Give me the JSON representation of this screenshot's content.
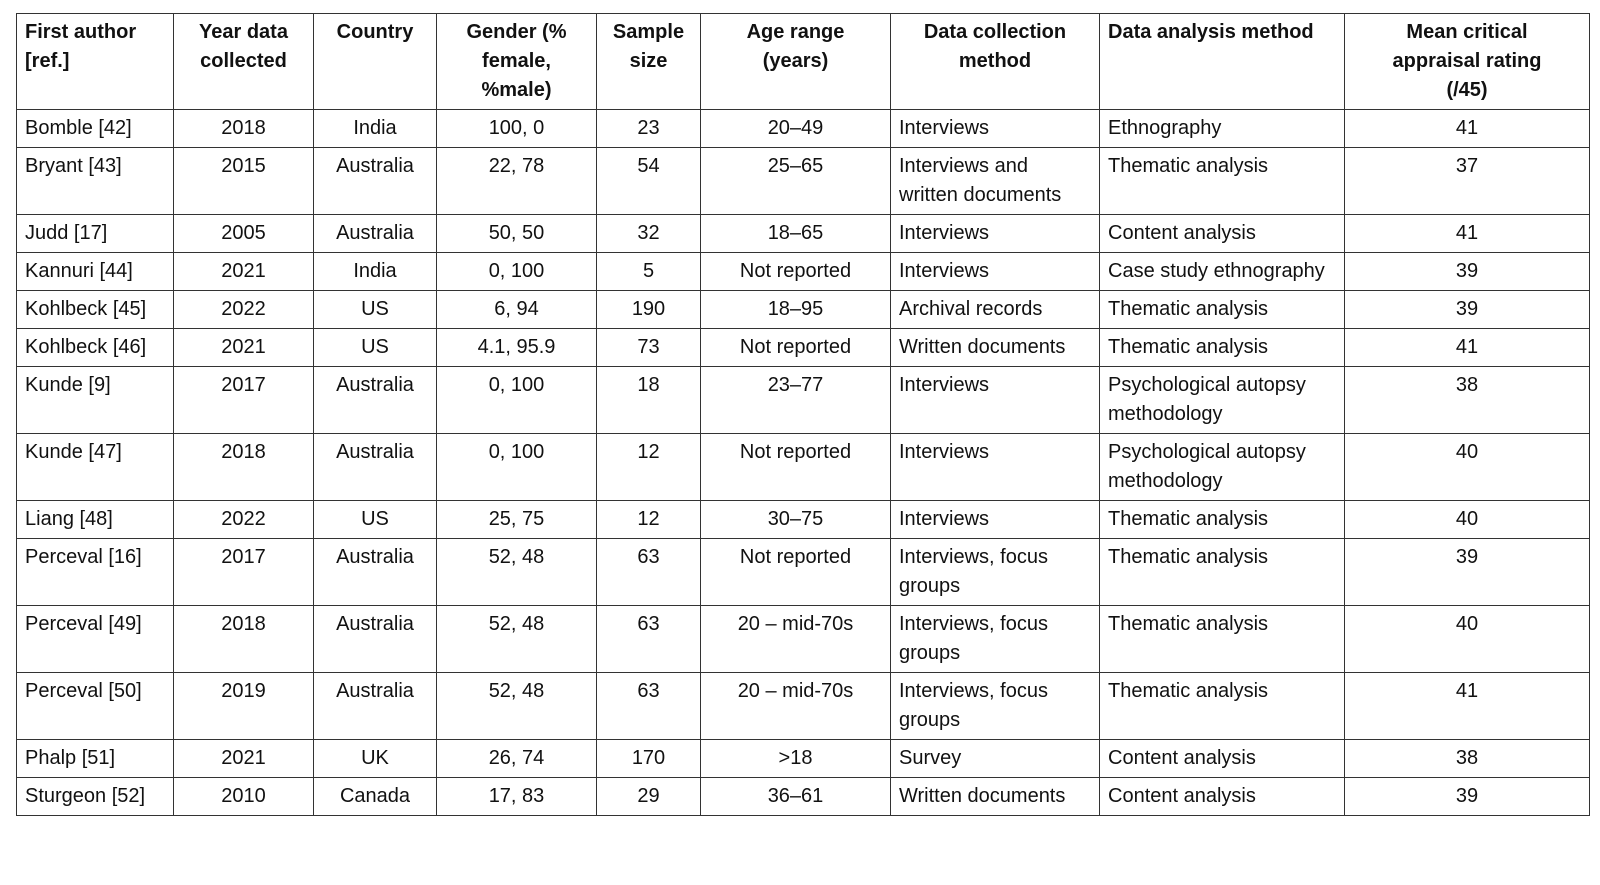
{
  "table": {
    "headers": [
      "First author [ref.]",
      "Year data collected",
      "Country",
      "Gender (% female, %male)",
      "Sample size",
      "Age range (years)",
      "Data collection method",
      "Data analysis method",
      "Mean critical appraisal rating (/45)"
    ],
    "rows": [
      [
        "Bomble [42]",
        "2018",
        "India",
        "100, 0",
        "23",
        "20–49",
        "Interviews",
        "Ethnography",
        "41"
      ],
      [
        "Bryant [43]",
        "2015",
        "Australia",
        "22, 78",
        "54",
        "25–65",
        "Interviews and written documents",
        "Thematic analysis",
        "37"
      ],
      [
        "Judd [17]",
        "2005",
        "Australia",
        "50, 50",
        "32",
        "18–65",
        "Interviews",
        "Content analysis",
        "41"
      ],
      [
        "Kannuri [44]",
        "2021",
        "India",
        "0, 100",
        "5",
        "Not reported",
        "Interviews",
        "Case study ethnography",
        "39"
      ],
      [
        "Kohlbeck [45]",
        "2022",
        "US",
        "6, 94",
        "190",
        "18–95",
        "Archival records",
        "Thematic analysis",
        "39"
      ],
      [
        "Kohlbeck [46]",
        "2021",
        "US",
        "4.1, 95.9",
        "73",
        "Not reported",
        "Written documents",
        "Thematic analysis",
        "41"
      ],
      [
        "Kunde [9]",
        "2017",
        "Australia",
        "0, 100",
        "18",
        "23–77",
        "Interviews",
        "Psychological autopsy methodology",
        "38"
      ],
      [
        "Kunde [47]",
        "2018",
        "Australia",
        "0, 100",
        "12",
        "Not reported",
        "Interviews",
        "Psychological autopsy methodology",
        "40"
      ],
      [
        "Liang [48]",
        "2022",
        "US",
        "25, 75",
        "12",
        "30–75",
        "Interviews",
        "Thematic analysis",
        "40"
      ],
      [
        "Perceval [16]",
        "2017",
        "Australia",
        "52, 48",
        "63",
        "Not reported",
        "Interviews, focus groups",
        "Thematic analysis",
        "39"
      ],
      [
        "Perceval [49]",
        "2018",
        "Australia",
        "52, 48",
        "63",
        "20 – mid-70s",
        "Interviews, focus groups",
        "Thematic analysis",
        "40"
      ],
      [
        "Perceval [50]",
        "2019",
        "Australia",
        "52, 48",
        "63",
        "20 – mid-70s",
        "Interviews, focus groups",
        "Thematic analysis",
        "41"
      ],
      [
        "Phalp [51]",
        "2021",
        "UK",
        "26, 74",
        "170",
        ">18",
        "Survey",
        "Content analysis",
        "38"
      ],
      [
        "Sturgeon [52]",
        "2010",
        "Canada",
        "17, 83",
        "29",
        "36–61",
        "Written documents",
        "Content analysis",
        "39"
      ]
    ]
  }
}
